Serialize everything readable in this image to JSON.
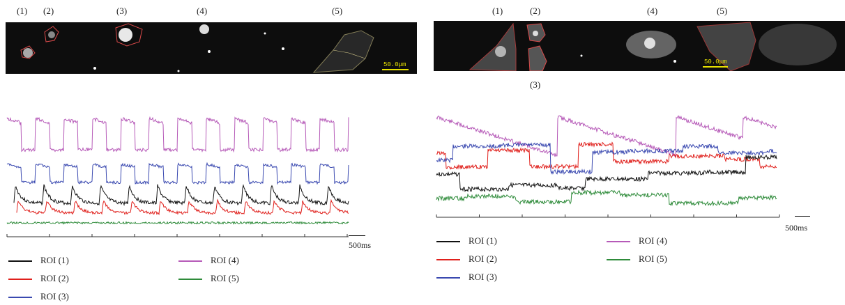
{
  "left": {
    "roi_labels": [
      "(1)",
      "(2)",
      "(3)",
      "(4)",
      "(5)"
    ],
    "scale_text": "50.0μm",
    "scale_bar_label": "500ms",
    "legend": [
      "ROI (1)",
      "ROI (2)",
      "ROI (3)",
      "ROI (4)",
      "ROI (5)"
    ]
  },
  "right": {
    "roi_labels": [
      "(1)",
      "(2)",
      "(3)",
      "(4)",
      "(5)"
    ],
    "scale_text": "50.0μm",
    "scale_bar_label": "500ms",
    "legend": [
      "ROI (1)",
      "ROI (2)",
      "ROI (3)",
      "ROI (4)",
      "ROI (5)"
    ]
  },
  "colors": {
    "roi1": "#111111",
    "roi2": "#e0201c",
    "roi3": "#3a49b0",
    "roi4": "#b65ab8",
    "roi5": "#2e8b3a",
    "outline": "#d94a4a"
  },
  "chart_data": [
    {
      "type": "line",
      "panel": "left",
      "xlabel": "",
      "ylabel": "",
      "series": [
        {
          "name": "ROI (1)",
          "pattern": "periodic",
          "peaks": 12
        },
        {
          "name": "ROI (2)",
          "pattern": "periodic",
          "peaks": 12
        },
        {
          "name": "ROI (3)",
          "pattern": "periodic",
          "peaks": 12
        },
        {
          "name": "ROI (4)",
          "pattern": "periodic",
          "peaks": 12
        },
        {
          "name": "ROI (5)",
          "pattern": "flat"
        }
      ]
    },
    {
      "type": "line",
      "panel": "right",
      "xlabel": "",
      "ylabel": "",
      "series": [
        {
          "name": "ROI (1)",
          "pattern": "irregular"
        },
        {
          "name": "ROI (2)",
          "pattern": "irregular"
        },
        {
          "name": "ROI (3)",
          "pattern": "irregular"
        },
        {
          "name": "ROI (4)",
          "pattern": "irregular",
          "peaks": 4
        },
        {
          "name": "ROI (5)",
          "pattern": "irregular"
        }
      ]
    }
  ]
}
